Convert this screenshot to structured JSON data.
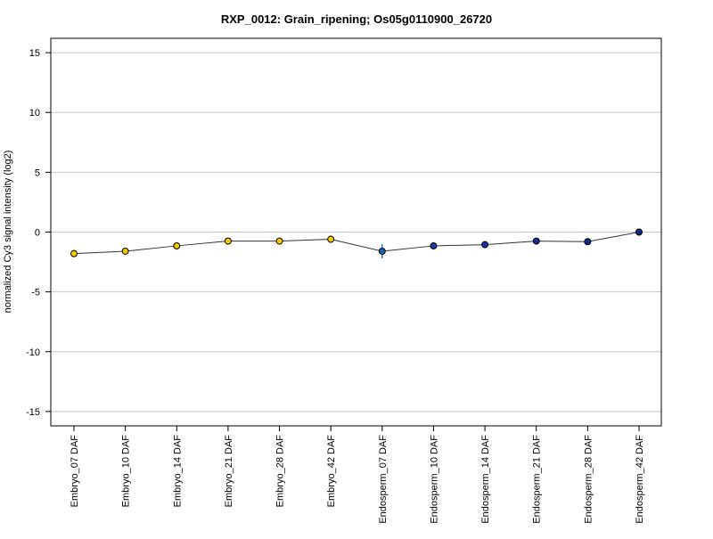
{
  "chart_data": {
    "type": "line",
    "title": "RXP_0012: Grain_ripening; Os05g0110900_26720",
    "xlabel": "",
    "ylabel": "normalized Cy3 signal intensity (log2)",
    "ylim": [
      -16.2,
      16.2
    ],
    "yticks": [
      -15,
      -10,
      -5,
      0,
      5,
      10,
      15
    ],
    "grid": "horizontal at y ticks",
    "categories": [
      "Embryo_07 DAF",
      "Embryo_10 DAF",
      "Embryo_14 DAF",
      "Embryo_21 DAF",
      "Embryo_28 DAF",
      "Embryo_42 DAF",
      "Endosperm_07 DAF",
      "Endosperm_10 DAF",
      "Endosperm_14 DAF",
      "Endosperm_21 DAF",
      "Endosperm_28 DAF",
      "Endosperm_42 DAF"
    ],
    "values": [
      -1.8,
      -1.6,
      -1.15,
      -0.75,
      -0.75,
      -0.6,
      -1.6,
      -1.15,
      -1.05,
      -0.75,
      -0.8,
      0.0
    ],
    "error": [
      0.1,
      0.1,
      0.1,
      0.1,
      0.1,
      0.1,
      0.6,
      0.1,
      0.1,
      0.1,
      0.1,
      0.3
    ],
    "point_colors": [
      "#f0c800",
      "#f0c800",
      "#f0c800",
      "#f0c800",
      "#f0c800",
      "#f0c800",
      "#1a5fb4",
      "#1a3ca8",
      "#1a2f9c",
      "#122a90",
      "#0e2a84",
      "#0a2a88"
    ],
    "line_color": "#333333",
    "grid_color": "#c8c8c8"
  }
}
